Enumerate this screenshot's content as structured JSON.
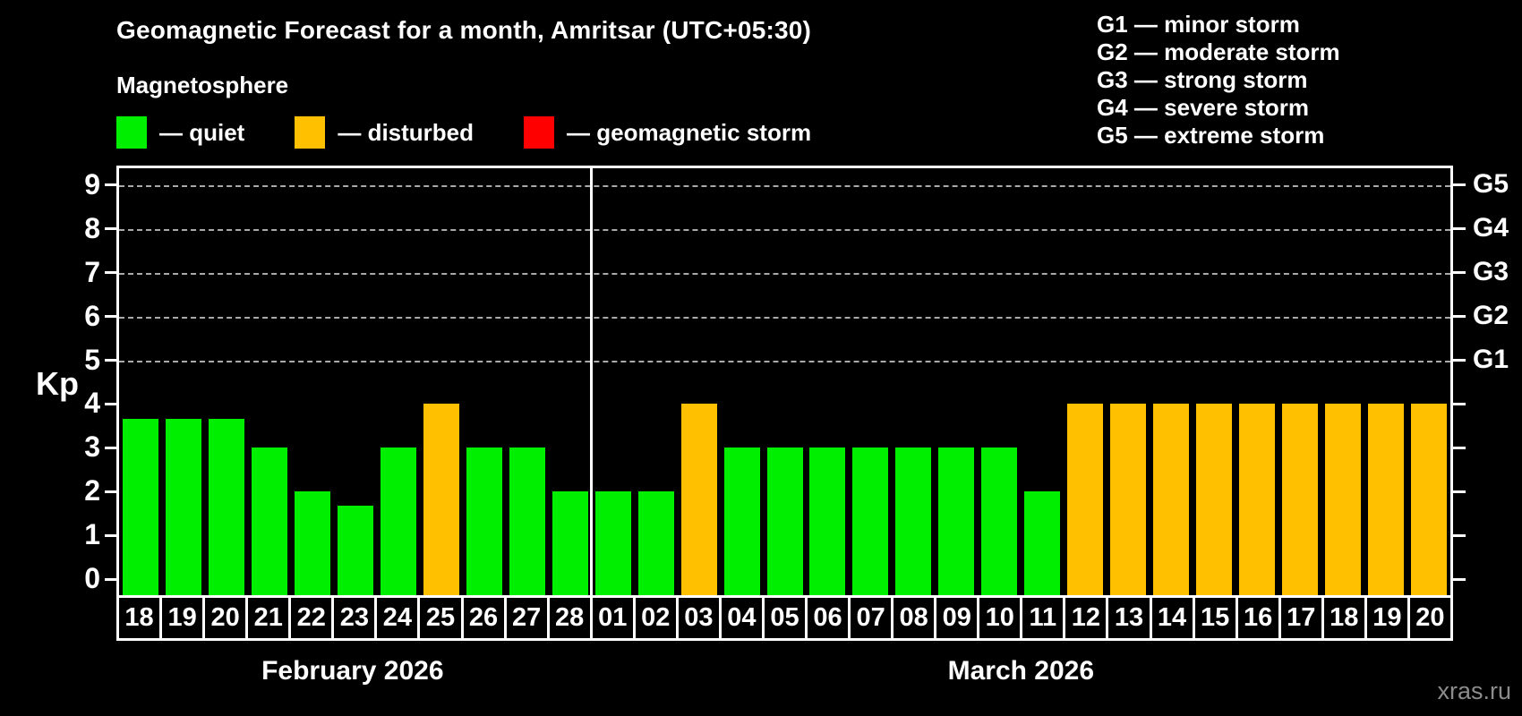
{
  "title": "Geomagnetic Forecast for a month, Amritsar (UTC+05:30)",
  "subtitle": "Magnetosphere",
  "watermark": "xras.ru",
  "colors": {
    "quiet": "#00ee00",
    "disturbed": "#ffc000",
    "storm": "#ff0000",
    "axis": "#ffffff",
    "grid": "#aaaaaa",
    "background": "#000000"
  },
  "legend": [
    {
      "key": "quiet",
      "label": "— quiet"
    },
    {
      "key": "disturbed",
      "label": "— disturbed"
    },
    {
      "key": "storm",
      "label": "— geomagnetic storm"
    }
  ],
  "g_legend": [
    {
      "text": "G1 — minor storm"
    },
    {
      "text": "G2 — moderate storm"
    },
    {
      "text": "G3 — strong storm"
    },
    {
      "text": "G4 — severe storm"
    },
    {
      "text": "G5 — extreme storm"
    }
  ],
  "chart_data": {
    "type": "bar",
    "title": "Geomagnetic Forecast for a month, Amritsar (UTC+05:30)",
    "ylabel": "Kp",
    "ylim": [
      -0.4,
      9.4
    ],
    "yticks": [
      "0",
      "1",
      "2",
      "3",
      "4",
      "5",
      "6",
      "7",
      "8",
      "9"
    ],
    "grid_levels": [
      {
        "value": 5,
        "label": "G1"
      },
      {
        "value": 6,
        "label": "G2"
      },
      {
        "value": 7,
        "label": "G3"
      },
      {
        "value": 8,
        "label": "G4"
      },
      {
        "value": 9,
        "label": "G5"
      }
    ],
    "categories": [
      "18",
      "19",
      "20",
      "21",
      "22",
      "23",
      "24",
      "25",
      "26",
      "27",
      "28",
      "01",
      "02",
      "03",
      "04",
      "05",
      "06",
      "07",
      "08",
      "09",
      "10",
      "11",
      "12",
      "13",
      "14",
      "15",
      "16",
      "17",
      "18",
      "19",
      "20"
    ],
    "values": [
      3.67,
      3.67,
      3.67,
      3,
      2,
      1.67,
      3,
      4,
      3,
      3,
      2,
      2,
      2,
      4,
      3,
      3,
      3,
      3,
      3,
      3,
      3,
      2,
      4,
      4,
      4,
      4,
      4,
      4,
      4,
      4,
      4
    ],
    "status": [
      "quiet",
      "quiet",
      "quiet",
      "quiet",
      "quiet",
      "quiet",
      "quiet",
      "disturbed",
      "quiet",
      "quiet",
      "quiet",
      "quiet",
      "quiet",
      "disturbed",
      "quiet",
      "quiet",
      "quiet",
      "quiet",
      "quiet",
      "quiet",
      "quiet",
      "quiet",
      "disturbed",
      "disturbed",
      "disturbed",
      "disturbed",
      "disturbed",
      "disturbed",
      "disturbed",
      "disturbed",
      "disturbed"
    ],
    "months": [
      {
        "label": "February 2026",
        "days": 11
      },
      {
        "label": "March 2026",
        "days": 20
      }
    ],
    "divider_after_index": 10,
    "legend_position": "top-left",
    "grid": "dashed horizontal at Kp 5-9 only"
  }
}
